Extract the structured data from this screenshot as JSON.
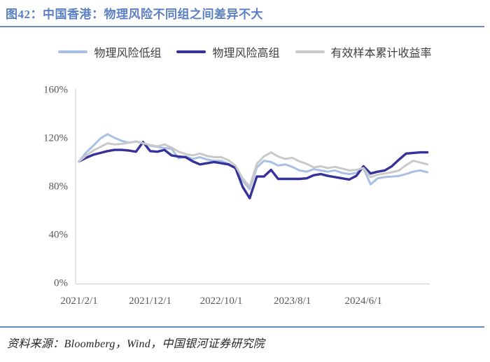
{
  "title": "图42：中国香港：物理风险不同组之间差异不大",
  "source": "资料来源：Bloomberg，Wind，中国银河证券研究院",
  "colors": {
    "title_text": "#5b7fc4",
    "rule": "#6b8cc7",
    "axis_line": "#d9d9d9",
    "tick_text": "#595959"
  },
  "chart_data": {
    "type": "line",
    "title": "图42：中国香港：物理风险不同组之间差异不大",
    "xlabel": "",
    "ylabel": "",
    "ylim": [
      0,
      160
    ],
    "yticks": [
      0,
      40,
      80,
      120,
      160
    ],
    "ytick_suffix": "%",
    "grid": false,
    "legend_position": "top",
    "categories": [
      "2021/2/1",
      "2021/3/1",
      "2021/4/1",
      "2021/5/1",
      "2021/6/1",
      "2021/7/1",
      "2021/8/1",
      "2021/9/1",
      "2021/10/1",
      "2021/11/1",
      "2021/12/1",
      "2022/1/1",
      "2022/2/1",
      "2022/3/1",
      "2022/4/1",
      "2022/5/1",
      "2022/6/1",
      "2022/7/1",
      "2022/8/1",
      "2022/9/1",
      "2022/10/1",
      "2022/11/1",
      "2022/12/1",
      "2023/1/1",
      "2023/2/1",
      "2023/3/1",
      "2023/4/1",
      "2023/5/1",
      "2023/6/1",
      "2023/7/1",
      "2023/8/1",
      "2023/9/1",
      "2023/10/1",
      "2023/11/1",
      "2023/12/1",
      "2024/1/1",
      "2024/2/1",
      "2024/3/1",
      "2024/4/1",
      "2024/5/1",
      "2024/6/1",
      "2024/7/1",
      "2024/8/1",
      "2024/9/1",
      "2024/10/1",
      "2024/11/1",
      "2024/12/1",
      "2025/1/1",
      "2025/2/1",
      "2025/3/1"
    ],
    "x_tick_indices": [
      0,
      10,
      20,
      30,
      40
    ],
    "x_tick_labels": [
      "2021/2/1",
      "2021/12/1",
      "2022/10/1",
      "2023/8/1",
      "2024/6/1"
    ],
    "series": [
      {
        "name": "物理风险低组",
        "color": "#a7c0e4",
        "width": 3,
        "values": [
          100,
          107.5,
          113,
          119,
          122.5,
          119.5,
          117,
          115.5,
          116.5,
          115,
          113,
          112,
          111,
          110.5,
          102.5,
          104,
          102,
          103.5,
          101.5,
          100.5,
          100.5,
          98,
          94.5,
          84,
          77,
          95,
          100.5,
          99.5,
          96.5,
          97.5,
          95.5,
          92.5,
          91.5,
          93.5,
          92.5,
          91.5,
          92.5,
          90.5,
          89.5,
          90.5,
          94.5,
          81,
          86,
          87,
          87.5,
          88,
          89.5,
          91.5,
          92.5,
          91
        ]
      },
      {
        "name": "物理风险高组",
        "color": "#37319b",
        "width": 3.4,
        "values": [
          100,
          103,
          105.5,
          107,
          108.5,
          109.5,
          109.5,
          109,
          108,
          116,
          108.5,
          108,
          109.5,
          105,
          104,
          103.5,
          100,
          97.5,
          98.5,
          99.5,
          98.5,
          97.5,
          94.5,
          79,
          69.5,
          87.5,
          87.5,
          93,
          85.5,
          85.5,
          85.5,
          85.5,
          86,
          88.5,
          89.5,
          88,
          87,
          86,
          85,
          88,
          96,
          90,
          91.5,
          92.5,
          96,
          101.5,
          106.5,
          107,
          107.5,
          107.5
        ]
      },
      {
        "name": "有效样本累计收益率",
        "color": "#c9c9c9",
        "width": 3,
        "values": [
          100,
          105,
          109,
          112,
          115,
          114,
          114.5,
          115.5,
          116.5,
          115,
          113.5,
          112.5,
          114,
          111.5,
          108,
          106,
          105,
          106.5,
          104.5,
          103.5,
          103.5,
          101,
          96.5,
          86,
          79,
          98,
          104,
          107.5,
          104,
          102,
          103,
          100,
          98,
          95,
          96,
          94.5,
          95.5,
          94,
          92.5,
          93,
          94.5,
          87,
          89,
          90,
          91,
          92.5,
          97,
          100.5,
          99,
          97.5
        ]
      }
    ]
  }
}
